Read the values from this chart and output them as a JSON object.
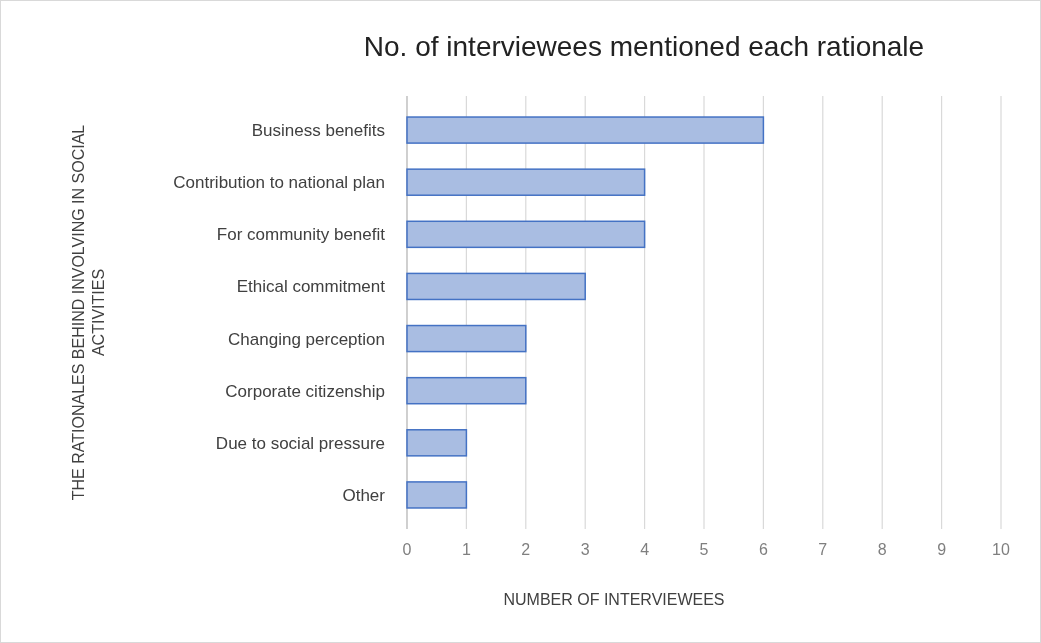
{
  "chart_data": {
    "type": "bar",
    "orientation": "horizontal",
    "title": "No. of interviewees mentioned each rationale",
    "xlabel": "NUMBER OF INTERVIEWEES",
    "ylabel": "THE RATIONALES BEHIND INVOLVING IN SOCIAL ACTIVITIES",
    "categories": [
      "Business benefits",
      "Contribution to national plan",
      "For community benefit",
      "Ethical commitment",
      "Changing perception",
      "Corporate citizenship",
      "Due to social pressure",
      "Other"
    ],
    "values": [
      6,
      4,
      4,
      3,
      2,
      2,
      1,
      1
    ],
    "color": "#a9bde2",
    "xlim": [
      0,
      10
    ],
    "xticks": [
      0,
      1,
      2,
      3,
      4,
      5,
      6,
      7,
      8,
      9,
      10
    ],
    "grid": "x"
  }
}
